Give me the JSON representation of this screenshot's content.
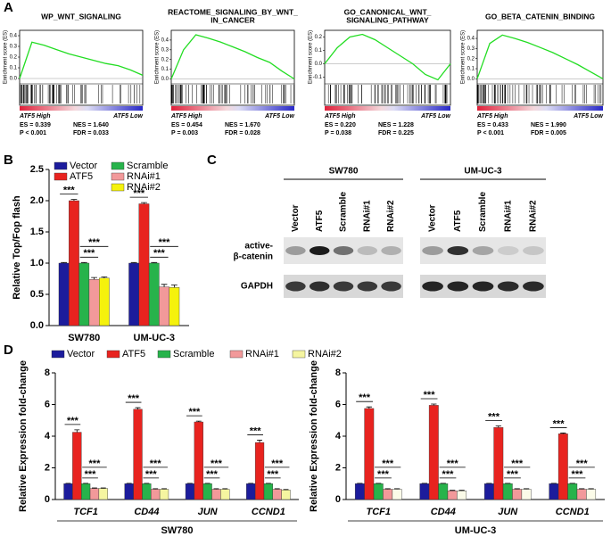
{
  "panel_labels": [
    "A",
    "B",
    "C",
    "D"
  ],
  "blot": {
    "cell_lines": [
      "SW780",
      "UM-UC-3"
    ],
    "lanes": [
      "Vector",
      "ATF5",
      "Scramble",
      "RNAi#1",
      "RNAi#2"
    ],
    "rows": [
      [
        "active-",
        "β-catenin"
      ],
      [
        "GAPDH"
      ]
    ]
  },
  "chart_data": [
    {
      "type": "gsea",
      "title": [
        "WP_WNT_SIGNALING"
      ],
      "ylabel": "Enrichment score (ES)",
      "high_label": "ATF5 High",
      "low_label": "ATF5 Low",
      "stats": [
        [
          "ES = 0.339",
          "NES = 1.640"
        ],
        [
          "P < 0.001",
          "FDR = 0.033"
        ]
      ],
      "color": "#22dd22",
      "xlim": [
        0,
        1
      ],
      "x": [
        0,
        0.1,
        0.2,
        0.3,
        0.4,
        0.5,
        0.6,
        0.7,
        0.8,
        0.9,
        1
      ],
      "values": [
        0,
        0.339,
        0.31,
        0.27,
        0.23,
        0.2,
        0.17,
        0.14,
        0.12,
        0.08,
        0.03
      ],
      "ylim": [
        -0.05,
        0.45
      ],
      "yticks": [
        {
          "value": 0,
          "label": "0.0"
        },
        {
          "value": 0.1,
          "label": "0.1"
        },
        {
          "value": 0.2,
          "label": "0.2"
        },
        {
          "value": 0.3,
          "label": "0.3"
        },
        {
          "value": 0.4,
          "label": "0.4"
        }
      ]
    },
    {
      "type": "gsea",
      "title": [
        "REACTOME_SIGNALING_BY_WNT_",
        "IN_CANCER"
      ],
      "ylabel": "Enrichment score (ES)",
      "high_label": "ATF5 High",
      "low_label": "ATF5 Low",
      "stats": [
        [
          "ES = 0.454",
          "NES = 1.670"
        ],
        [
          "P = 0.003",
          "FDR = 0.028"
        ]
      ],
      "color": "#22dd22",
      "xlim": [
        0,
        1
      ],
      "x": [
        0,
        0.1,
        0.2,
        0.3,
        0.4,
        0.5,
        0.6,
        0.7,
        0.8,
        0.9,
        1
      ],
      "values": [
        0,
        0.3,
        0.454,
        0.42,
        0.38,
        0.33,
        0.28,
        0.22,
        0.17,
        0.08,
        0.0
      ],
      "ylim": [
        -0.05,
        0.5
      ],
      "yticks": [
        {
          "value": 0,
          "label": "0.0"
        },
        {
          "value": 0.1,
          "label": "0.1"
        },
        {
          "value": 0.2,
          "label": "0.2"
        },
        {
          "value": 0.3,
          "label": "0.3"
        },
        {
          "value": 0.4,
          "label": "0.4"
        }
      ]
    },
    {
      "type": "gsea",
      "title": [
        "GO_CANONICAL_WNT_",
        "SIGNALING_PATHWAY"
      ],
      "ylabel": "Enrichment score (ES)",
      "high_label": "ATF5 High",
      "low_label": "ATF5 Low",
      "stats": [
        [
          "ES = 0.220",
          "NES = 1.228"
        ],
        [
          "P = 0.038",
          "FDR = 0.225"
        ]
      ],
      "color": "#22dd22",
      "xlim": [
        0,
        1
      ],
      "x": [
        0,
        0.1,
        0.2,
        0.3,
        0.4,
        0.5,
        0.6,
        0.7,
        0.8,
        0.9,
        1
      ],
      "values": [
        0,
        0.12,
        0.2,
        0.22,
        0.18,
        0.12,
        0.06,
        0.0,
        -0.08,
        -0.12,
        0.0
      ],
      "ylim": [
        -0.15,
        0.25
      ],
      "yticks": [
        {
          "value": -0.1,
          "label": "-0.1"
        },
        {
          "value": 0,
          "label": "0.0"
        },
        {
          "value": 0.1,
          "label": "0.1"
        },
        {
          "value": 0.2,
          "label": "0.2"
        }
      ]
    },
    {
      "type": "gsea",
      "title": [
        "GO_BETA_CATENIN_BINDING"
      ],
      "ylabel": "Enrichment score (ES)",
      "high_label": "ATF5 High",
      "low_label": "ATF5 Low",
      "stats": [
        [
          "ES = 0.433",
          "NES = 1.990"
        ],
        [
          "P < 0.001",
          "FDR = 0.005"
        ]
      ],
      "color": "#22dd22",
      "xlim": [
        0,
        1
      ],
      "x": [
        0,
        0.1,
        0.2,
        0.3,
        0.4,
        0.5,
        0.6,
        0.7,
        0.8,
        0.9,
        1
      ],
      "values": [
        0,
        0.35,
        0.433,
        0.4,
        0.36,
        0.31,
        0.26,
        0.2,
        0.14,
        0.07,
        0.0
      ],
      "ylim": [
        -0.05,
        0.48
      ],
      "yticks": [
        {
          "value": 0,
          "label": "0.0"
        },
        {
          "value": 0.1,
          "label": "0.1"
        },
        {
          "value": 0.2,
          "label": "0.2"
        },
        {
          "value": 0.3,
          "label": "0.3"
        },
        {
          "value": 0.4,
          "label": "0.4"
        }
      ]
    },
    {
      "type": "bar",
      "ylabel": "Relative Top/Fop flash",
      "categories": [
        "SW780",
        "UM-UC-3"
      ],
      "legend": "upper left",
      "series": [
        {
          "name": "Vector",
          "color": "#1c1c9c",
          "values": [
            1,
            1
          ],
          "errors": [
            0.01,
            0.01
          ]
        },
        {
          "name": "ATF5",
          "color": "#e8231f",
          "values": [
            2.0,
            1.95
          ],
          "errors": [
            0.02,
            0.02
          ]
        },
        {
          "name": "Scramble",
          "color": "#27b34b",
          "values": [
            1.0,
            1.0
          ],
          "errors": [
            0.01,
            0.01
          ]
        },
        {
          "name": "RNAi#1",
          "color": "#f2999a",
          "values": [
            0.74,
            0.62
          ],
          "errors": [
            0.03,
            0.04
          ]
        },
        {
          "name": "RNAi#2",
          "color": "#f5f20c",
          "values": [
            0.76,
            0.61
          ],
          "errors": [
            0.02,
            0.04
          ]
        }
      ],
      "significance": [
        {
          "pair": [
            0,
            1
          ],
          "label": "***"
        },
        {
          "pair": [
            2,
            3
          ],
          "label": "***"
        },
        {
          "pair": [
            2,
            4
          ],
          "label": "***"
        }
      ],
      "ylim": [
        0,
        2.5
      ],
      "yticks": [
        {
          "value": 0,
          "label": "0.0"
        },
        {
          "value": 0.5,
          "label": "0.5"
        },
        {
          "value": 1,
          "label": "1.0"
        },
        {
          "value": 1.5,
          "label": "1.5"
        },
        {
          "value": 2,
          "label": "2.0"
        },
        {
          "value": 2.5,
          "label": "2.5"
        }
      ]
    },
    {
      "type": "bar",
      "ylabel": "Relative Expression fold-change",
      "xlabel": "SW780",
      "categories": [
        "TCF1",
        "CD44",
        "JUN",
        "CCND1"
      ],
      "legend": "top",
      "series": [
        {
          "name": "Vector",
          "color": "#1c1c9c",
          "values": [
            1,
            1,
            1,
            1
          ],
          "errors": [
            0.02,
            0.02,
            0.02,
            0.02
          ]
        },
        {
          "name": "ATF5",
          "color": "#e8231f",
          "values": [
            4.25,
            5.7,
            4.9,
            3.6
          ],
          "errors": [
            0.15,
            0.1,
            0.05,
            0.15
          ]
        },
        {
          "name": "Scramble",
          "color": "#27b34b",
          "values": [
            1.0,
            1.0,
            1.0,
            1.0
          ],
          "errors": [
            0.02,
            0.02,
            0.02,
            0.02
          ]
        },
        {
          "name": "RNAi#1",
          "color": "#f2999a",
          "values": [
            0.7,
            0.65,
            0.65,
            0.65
          ],
          "errors": [
            0.03,
            0.03,
            0.03,
            0.03
          ]
        },
        {
          "name": "RNAi#2",
          "color": "#f5f5a0",
          "values": [
            0.7,
            0.65,
            0.65,
            0.6
          ],
          "errors": [
            0.03,
            0.03,
            0.03,
            0.03
          ]
        }
      ],
      "significance": [
        {
          "pair": [
            0,
            1
          ],
          "label": "***"
        },
        {
          "pair": [
            2,
            3
          ],
          "label": "***"
        },
        {
          "pair": [
            2,
            4
          ],
          "label": "***"
        }
      ],
      "ylim": [
        0,
        8
      ],
      "yticks": [
        0,
        2,
        4,
        6,
        8
      ]
    },
    {
      "type": "bar",
      "ylabel": "Relative Expression fold-change",
      "xlabel": "UM-UC-3",
      "categories": [
        "TCF1",
        "CD44",
        "JUN",
        "CCND1"
      ],
      "series": [
        {
          "color": "#1c1c9c",
          "values": [
            1,
            1,
            1,
            1
          ],
          "errors": [
            0.02,
            0.02,
            0.02,
            0.02
          ]
        },
        {
          "color": "#e8231f",
          "values": [
            5.75,
            5.95,
            4.55,
            4.15
          ],
          "errors": [
            0.1,
            0.08,
            0.1,
            0.05
          ]
        },
        {
          "color": "#27b34b",
          "values": [
            1.0,
            1.0,
            1.0,
            1.0
          ],
          "errors": [
            0.02,
            0.02,
            0.02,
            0.02
          ]
        },
        {
          "color": "#f2999a",
          "values": [
            0.65,
            0.55,
            0.65,
            0.65
          ],
          "errors": [
            0.03,
            0.03,
            0.03,
            0.03
          ]
        },
        {
          "color": "#fbfbe8",
          "values": [
            0.65,
            0.55,
            0.65,
            0.65
          ],
          "errors": [
            0.03,
            0.03,
            0.03,
            0.03
          ]
        }
      ],
      "significance": [
        {
          "pair": [
            0,
            1
          ],
          "label": "***"
        },
        {
          "pair": [
            2,
            3
          ],
          "label": "***"
        },
        {
          "pair": [
            2,
            4
          ],
          "label": "***"
        }
      ],
      "ylim": [
        0,
        8
      ],
      "yticks": [
        0,
        2,
        4,
        6,
        8
      ]
    }
  ]
}
